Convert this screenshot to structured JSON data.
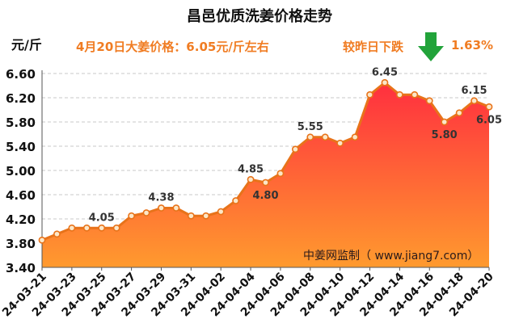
{
  "header": {
    "title": "昌邑优质洗姜价格走势",
    "unit": "元/斤",
    "price_note": "4月20日大姜价格：6.05元/斤左右",
    "change_label": "较昨日下跌",
    "change_value": "1.63%",
    "watermark": "中姜网监制（ www.jiang7.com）"
  },
  "colors": {
    "accent_text": "#f07c22",
    "arrow": "#22a33a",
    "line": "#e8731a",
    "area_top": "#ff2f3f",
    "area_bottom": "#ff9a2e"
  },
  "icons": {
    "change_arrow": "down-arrow-icon"
  },
  "chart_data": {
    "type": "area",
    "title": "昌邑优质洗姜价格走势",
    "ylabel": "元/斤",
    "ylim": [
      3.4,
      6.6
    ],
    "yticks": [
      "3.40",
      "3.80",
      "4.20",
      "4.60",
      "5.00",
      "5.40",
      "5.80",
      "6.20",
      "6.60"
    ],
    "grid": true,
    "categories": [
      "24-03-21",
      "24-03-22",
      "24-03-23",
      "24-03-24",
      "24-03-25",
      "24-03-26",
      "24-03-27",
      "24-03-28",
      "24-03-29",
      "24-03-30",
      "24-03-31",
      "24-04-01",
      "24-04-02",
      "24-04-03",
      "24-04-04",
      "24-04-05",
      "24-04-06",
      "24-04-07",
      "24-04-08",
      "24-04-09",
      "24-04-10",
      "24-04-11",
      "24-04-12",
      "24-04-13",
      "24-04-14",
      "24-04-15",
      "24-04-16",
      "24-04-17",
      "24-04-18",
      "24-04-19",
      "24-04-20"
    ],
    "xtick_labels": [
      "24-03-21",
      "24-03-23",
      "24-03-25",
      "24-03-27",
      "24-03-29",
      "24-03-31",
      "24-04-02",
      "24-04-04",
      "24-04-06",
      "24-04-08",
      "24-04-10",
      "24-04-12",
      "24-04-14",
      "24-04-16",
      "24-04-18",
      "24-04-20"
    ],
    "values": [
      3.85,
      3.95,
      4.05,
      4.05,
      4.05,
      4.05,
      4.25,
      4.3,
      4.38,
      4.38,
      4.25,
      4.25,
      4.32,
      4.5,
      4.85,
      4.8,
      4.95,
      5.35,
      5.55,
      5.55,
      5.45,
      5.55,
      6.25,
      6.45,
      6.25,
      6.25,
      6.15,
      5.8,
      5.95,
      6.15,
      6.05
    ],
    "data_labels": [
      {
        "index": 4,
        "text": "4.05",
        "pos": "above"
      },
      {
        "index": 8,
        "text": "4.38",
        "pos": "above"
      },
      {
        "index": 14,
        "text": "4.85",
        "pos": "above"
      },
      {
        "index": 15,
        "text": "4.80",
        "pos": "below"
      },
      {
        "index": 18,
        "text": "5.55",
        "pos": "above"
      },
      {
        "index": 23,
        "text": "6.45",
        "pos": "above"
      },
      {
        "index": 27,
        "text": "5.80",
        "pos": "below"
      },
      {
        "index": 29,
        "text": "6.15",
        "pos": "above"
      },
      {
        "index": 30,
        "text": "6.05",
        "pos": "below"
      }
    ]
  }
}
